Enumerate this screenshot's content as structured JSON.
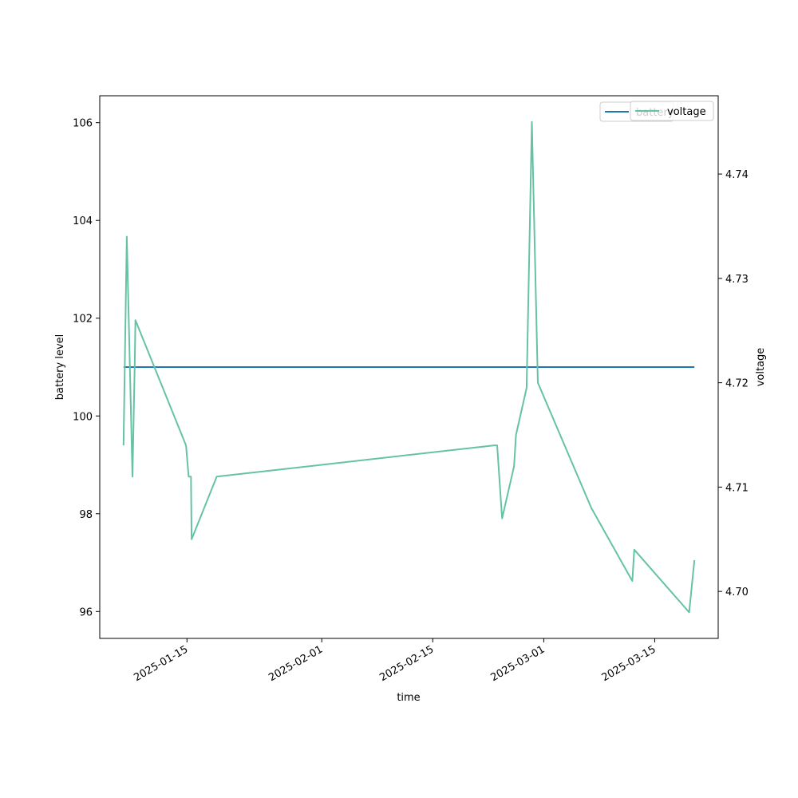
{
  "chart_data": {
    "type": "line",
    "xlabel": "time",
    "ylabel_left": "battery level",
    "ylabel_right": "voltage",
    "x_ticks": [
      "2025-01-15",
      "2025-02-01",
      "2025-02-15",
      "2025-03-01",
      "2025-03-15"
    ],
    "xlim": [
      "2025-01-04",
      "2025-03-23"
    ],
    "y_left_ticks": [
      "96",
      "98",
      "100",
      "102",
      "104",
      "106"
    ],
    "y_left_lim": [
      95.45,
      106.55
    ],
    "y_right_ticks": [
      "4.70",
      "4.71",
      "4.72",
      "4.73",
      "4.74"
    ],
    "y_right_lim": [
      4.6955,
      4.7475
    ],
    "legend_placement": "upper-right",
    "series": [
      {
        "name": "battery",
        "axis": "left",
        "color": "#1f77b4",
        "points": [
          [
            "2025-01-07",
            101
          ],
          [
            "2025-03-20",
            101
          ]
        ]
      },
      {
        "name": "voltage",
        "axis": "right",
        "color": "#66c2a5",
        "points": [
          [
            "2025-01-07",
            4.714
          ],
          [
            "2025-01-07T10:00",
            4.734
          ],
          [
            "2025-01-08T03:00",
            4.711
          ],
          [
            "2025-01-08T10:00",
            4.722
          ],
          [
            "2025-01-08T12:00",
            4.726
          ],
          [
            "2025-01-14T21:00",
            4.714
          ],
          [
            "2025-01-15T05:00",
            4.711
          ],
          [
            "2025-01-15T12:00",
            4.711
          ],
          [
            "2025-01-15T14:00",
            4.705
          ],
          [
            "2025-01-18T18:00",
            4.711
          ],
          [
            "2025-02-22T18:00",
            4.714
          ],
          [
            "2025-02-23T03:00",
            4.714
          ],
          [
            "2025-02-23T18:00",
            4.707
          ],
          [
            "2025-02-25T06:00",
            4.712
          ],
          [
            "2025-02-25T12:00",
            4.715
          ],
          [
            "2025-02-26T20:00",
            4.7195
          ],
          [
            "2025-02-27T12:00",
            4.745
          ],
          [
            "2025-02-28T06:00",
            4.72
          ],
          [
            "2025-03-07",
            4.708
          ],
          [
            "2025-03-12T04:00",
            4.701
          ],
          [
            "2025-03-12T10:00",
            4.704
          ],
          [
            "2025-03-19T08:00",
            4.698
          ],
          [
            "2025-03-20",
            4.703
          ]
        ]
      }
    ]
  },
  "legend": {
    "battery_label": "battery",
    "voltage_label": "voltage"
  }
}
